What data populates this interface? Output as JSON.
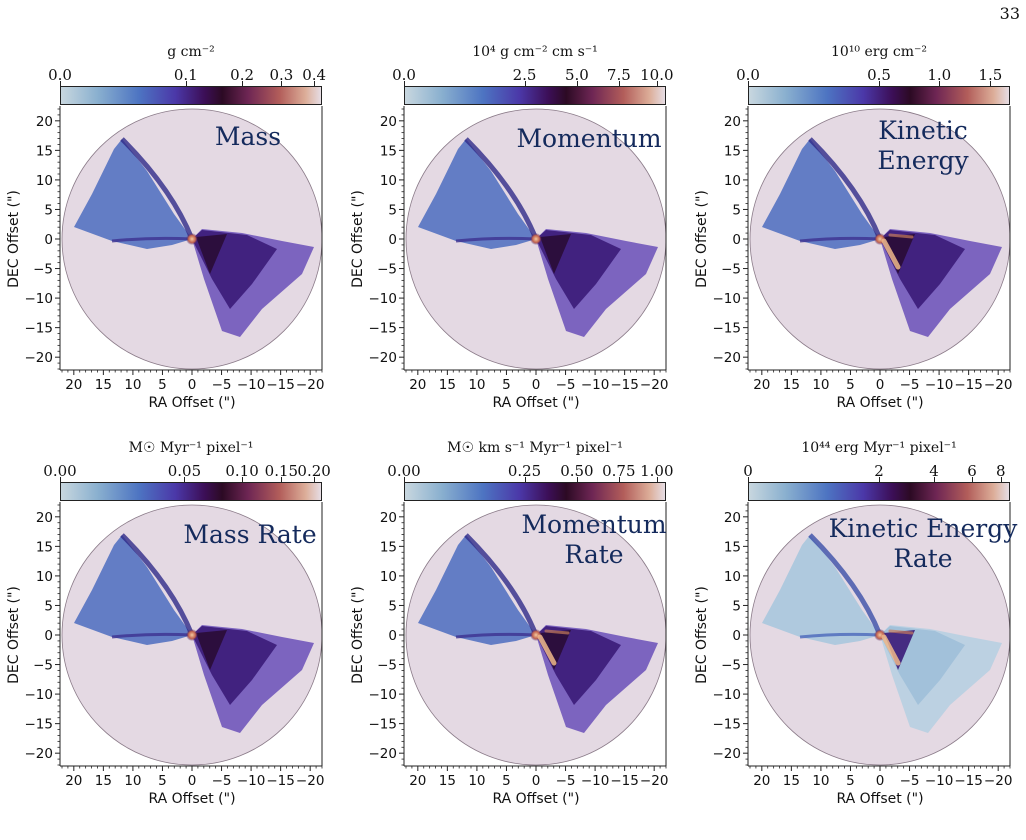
{
  "page_number": "33",
  "panels": [
    {
      "label_lines": [
        "Mass"
      ],
      "colorbar_title": "g cm⁻²",
      "colorbar_ticks": [
        "0.0",
        "0.1",
        "0.2",
        "0.3",
        "0.4"
      ],
      "xlabel": "RA Offset (\")",
      "ylabel": "DEC Offset (\")"
    },
    {
      "label_lines": [
        "Momentum"
      ],
      "colorbar_title": "10⁴ g cm⁻² cm s⁻¹",
      "colorbar_ticks": [
        "0.0",
        "2.5",
        "5.0",
        "7.5",
        "10.0"
      ],
      "xlabel": "RA Offset (\")",
      "ylabel": "DEC Offset (\")"
    },
    {
      "label_lines": [
        "Kinetic",
        "Energy"
      ],
      "colorbar_title": "10¹⁰ erg cm⁻²",
      "colorbar_ticks": [
        "0.0",
        "0.5",
        "1.0",
        "1.5"
      ],
      "xlabel": "RA Offset (\")",
      "ylabel": "DEC Offset (\")"
    },
    {
      "label_lines": [
        "Mass Rate"
      ],
      "colorbar_title": "M☉ Myr⁻¹ pixel⁻¹",
      "colorbar_ticks": [
        "0.00",
        "0.05",
        "0.10",
        "0.15",
        "0.20"
      ],
      "xlabel": "RA Offset (\")",
      "ylabel": "DEC Offset (\")"
    },
    {
      "label_lines": [
        "Momentum",
        "Rate"
      ],
      "colorbar_title": "M☉ km s⁻¹ Myr⁻¹ pixel⁻¹",
      "colorbar_ticks": [
        "0.00",
        "0.25",
        "0.50",
        "0.75",
        "1.00"
      ],
      "xlabel": "RA Offset (\")",
      "ylabel": "DEC Offset (\")"
    },
    {
      "label_lines": [
        "Kinetic Energy",
        "Rate"
      ],
      "colorbar_title": "10⁴⁴ erg Myr⁻¹ pixel⁻¹",
      "colorbar_ticks": [
        "0",
        "2",
        "4",
        "6",
        "8"
      ],
      "xlabel": "RA Offset (\")",
      "ylabel": "DEC Offset (\")"
    }
  ],
  "x_ticks": [
    "20",
    "15",
    "10",
    "5",
    "0",
    "−5",
    "−10",
    "−15",
    "−20"
  ],
  "y_ticks": [
    "20",
    "15",
    "10",
    "5",
    "0",
    "−5",
    "−10",
    "−15",
    "−20"
  ],
  "colors": {
    "background_disk": "#e4d9e3",
    "outflow_low": "#7fa5cf",
    "outflow_mid": "#4c6cc0",
    "outflow_high": "#3b1b78",
    "outflow_peak": "#2a0c36",
    "label": "#142a5c"
  }
}
